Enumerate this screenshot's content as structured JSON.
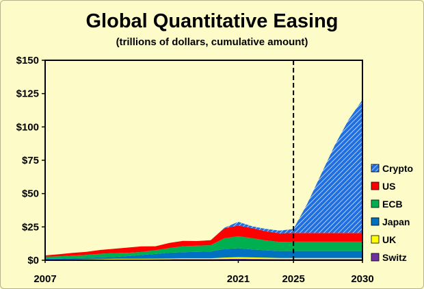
{
  "chart_data": {
    "type": "area",
    "stacked": true,
    "title": "Global Quantitative Easing",
    "subtitle": "(trillions of dollars, cumulative amount)",
    "xlabel": "",
    "ylabel": "",
    "x": [
      2007,
      2008,
      2009,
      2010,
      2011,
      2012,
      2013,
      2014,
      2015,
      2016,
      2017,
      2018,
      2019,
      2020,
      2021,
      2022,
      2023,
      2024,
      2025,
      2026,
      2027,
      2028,
      2029,
      2030
    ],
    "xlim": [
      2007,
      2030
    ],
    "ylim": [
      0,
      150
    ],
    "ytick_values": [
      0,
      25,
      50,
      75,
      100,
      125,
      150
    ],
    "ytick_labels": [
      "$0",
      "$25",
      "$50",
      "$75",
      "$100",
      "$125",
      "$150"
    ],
    "xtick_values": [
      2007,
      2021,
      2025,
      2030
    ],
    "xtick_labels": [
      "2007",
      "2021",
      "2025",
      "2030"
    ],
    "vline_x": 2025,
    "grid": false,
    "legend_position": "right",
    "series": [
      {
        "name": "Switz",
        "color": "#7030a0",
        "values": [
          0.1,
          0.1,
          0.2,
          0.3,
          0.4,
          0.5,
          0.5,
          0.5,
          0.6,
          0.7,
          0.8,
          0.8,
          0.8,
          1.0,
          1.1,
          1.0,
          0.9,
          0.8,
          0.8,
          0.8,
          0.8,
          0.8,
          0.8,
          0.8
        ]
      },
      {
        "name": "UK",
        "color": "#ffff00",
        "values": [
          0.1,
          0.1,
          0.3,
          0.4,
          0.5,
          0.6,
          0.6,
          0.6,
          0.6,
          0.6,
          0.7,
          0.7,
          0.7,
          1.0,
          1.2,
          1.1,
          1.0,
          0.9,
          0.9,
          0.9,
          0.9,
          0.9,
          0.9,
          0.9
        ]
      },
      {
        "name": "Japan",
        "color": "#0070c0",
        "values": [
          1.0,
          1.0,
          1.0,
          1.1,
          1.2,
          1.3,
          2.0,
          2.8,
          3.5,
          4.3,
          4.5,
          4.8,
          5.1,
          6.5,
          6.7,
          6.0,
          5.5,
          5.2,
          5.2,
          5.2,
          5.2,
          5.2,
          5.2,
          5.2
        ]
      },
      {
        "name": "ECB",
        "color": "#00b050",
        "values": [
          1.5,
          1.8,
          2.0,
          2.2,
          2.8,
          3.0,
          2.5,
          2.3,
          2.8,
          3.6,
          4.5,
          4.6,
          4.7,
          8.0,
          9.0,
          8.5,
          7.5,
          6.8,
          7.0,
          7.0,
          7.0,
          7.0,
          7.0,
          7.0
        ]
      },
      {
        "name": "US",
        "color": "#ff0000",
        "values": [
          0.9,
          1.5,
          2.0,
          2.3,
          2.8,
          3.2,
          3.9,
          4.2,
          3.0,
          3.8,
          4.0,
          3.5,
          3.7,
          7.5,
          8.0,
          7.5,
          6.8,
          6.5,
          6.5,
          6.5,
          6.5,
          6.5,
          6.5,
          6.5
        ]
      },
      {
        "name": "Crypto",
        "color": "#1f6fe0",
        "hatch": true,
        "values": [
          0,
          0,
          0,
          0,
          0,
          0,
          0,
          0,
          0,
          0,
          0,
          0,
          0,
          0.4,
          2.8,
          1.4,
          1.8,
          2.0,
          3.0,
          22.0,
          44.0,
          66.0,
          85.0,
          100.0
        ]
      }
    ]
  }
}
